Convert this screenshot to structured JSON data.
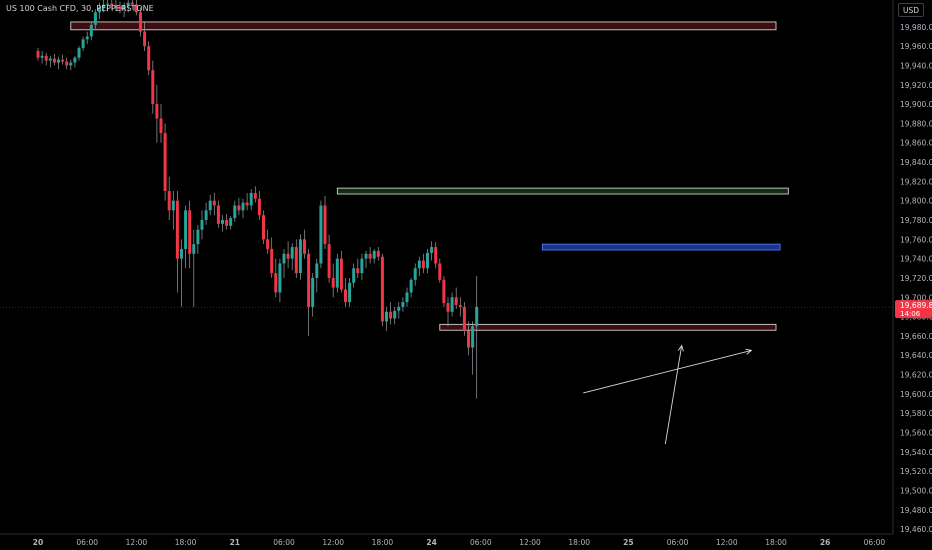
{
  "header": {
    "title": "US 100 Cash CFD, 30, PEPPERSTONE",
    "currency": "USD"
  },
  "price_label": {
    "price": "19,689.8",
    "countdown": "14:06",
    "color": "#f23645"
  },
  "colors": {
    "up": "#26a69a",
    "down": "#f23645",
    "wick": "#9aa0a6",
    "axis_text": "#b2b5be",
    "zone_red": "#f23645",
    "zone_green": "#4caf50",
    "zone_blue": "#2962ff"
  },
  "chart_data": {
    "type": "candlestick",
    "symbol": "US 100 Cash CFD",
    "interval": "30",
    "y_ticks": [
      19460,
      19480,
      19500,
      19520,
      19540,
      19560,
      19580,
      19600,
      19620,
      19640,
      19660,
      19680,
      19700,
      19720,
      19740,
      19760,
      19780,
      19800,
      19820,
      19840,
      19860,
      19880,
      19900,
      19920,
      19940,
      19960,
      19980
    ],
    "y_tick_labels": [
      "19,460.0",
      "19,480.0",
      "19,500.0",
      "19,520.0",
      "19,540.0",
      "19,560.0",
      "19,580.0",
      "19,600.0",
      "19,620.0",
      "19,640.0",
      "19,660.0",
      "19,680.0",
      "19,700.0",
      "19,720.0",
      "19,740.0",
      "19,760.0",
      "19,780.0",
      "19,800.0",
      "19,820.0",
      "19,840.0",
      "19,860.0",
      "19,880.0",
      "19,900.0",
      "19,920.0",
      "19,940.0",
      "19,960.0",
      "19,980.0"
    ],
    "ylim": [
      19450,
      20000
    ],
    "x_ticks": [
      {
        "label": "20",
        "bar": 0
      },
      {
        "label": "06:00",
        "bar": 12
      },
      {
        "label": "12:00",
        "bar": 24
      },
      {
        "label": "18:00",
        "bar": 36
      },
      {
        "label": "21",
        "bar": 48
      },
      {
        "label": "06:00",
        "bar": 60
      },
      {
        "label": "12:00",
        "bar": 72
      },
      {
        "label": "18:00",
        "bar": 84
      },
      {
        "label": "24",
        "bar": 96
      },
      {
        "label": "06:00",
        "bar": 108
      },
      {
        "label": "12:00",
        "bar": 120
      },
      {
        "label": "18:00",
        "bar": 132
      },
      {
        "label": "25",
        "bar": 144
      },
      {
        "label": "06:00",
        "bar": 156
      },
      {
        "label": "12:00",
        "bar": 168
      },
      {
        "label": "18:00",
        "bar": 180
      },
      {
        "label": "26",
        "bar": 192
      },
      {
        "label": "06:00",
        "bar": 204
      }
    ],
    "last_price": 19689.8,
    "candles": [
      [
        19955,
        19958,
        19945,
        19948
      ],
      [
        19948,
        19955,
        19942,
        19950
      ],
      [
        19950,
        19953,
        19940,
        19945
      ],
      [
        19945,
        19950,
        19938,
        19947
      ],
      [
        19947,
        19952,
        19940,
        19943
      ],
      [
        19943,
        19949,
        19936,
        19946
      ],
      [
        19946,
        19951,
        19941,
        19944
      ],
      [
        19944,
        19948,
        19936,
        19940
      ],
      [
        19940,
        19946,
        19935,
        19943
      ],
      [
        19943,
        19950,
        19938,
        19948
      ],
      [
        19948,
        19960,
        19945,
        19958
      ],
      [
        19958,
        19970,
        19955,
        19967
      ],
      [
        19967,
        19975,
        19962,
        19970
      ],
      [
        19970,
        19985,
        19966,
        19982
      ],
      [
        19982,
        19998,
        19978,
        19995
      ],
      [
        19995,
        20005,
        19988,
        20000
      ],
      [
        20000,
        20010,
        19995,
        20003
      ],
      [
        20003,
        20012,
        19996,
        20004
      ],
      [
        20004,
        20010,
        19998,
        20002
      ],
      [
        20002,
        20008,
        19996,
        20001
      ],
      [
        20001,
        20006,
        19994,
        19998
      ],
      [
        19998,
        20005,
        19990,
        20002
      ],
      [
        20002,
        20010,
        19995,
        20005
      ],
      [
        20005,
        20012,
        19998,
        20003
      ],
      [
        20003,
        20008,
        19992,
        19995
      ],
      [
        19995,
        20000,
        19970,
        19975
      ],
      [
        19975,
        19985,
        19955,
        19960
      ],
      [
        19960,
        19965,
        19930,
        19935
      ],
      [
        19935,
        19945,
        19890,
        19900
      ],
      [
        19900,
        19920,
        19860,
        19885
      ],
      [
        19885,
        19900,
        19860,
        19870
      ],
      [
        19870,
        19880,
        19800,
        19810
      ],
      [
        19810,
        19825,
        19780,
        19790
      ],
      [
        19790,
        19810,
        19770,
        19800
      ],
      [
        19800,
        19810,
        19705,
        19740
      ],
      [
        19740,
        19760,
        19690,
        19750
      ],
      [
        19750,
        19795,
        19730,
        19790
      ],
      [
        19790,
        19800,
        19730,
        19745
      ],
      [
        19745,
        19770,
        19690,
        19755
      ],
      [
        19755,
        19775,
        19745,
        19770
      ],
      [
        19770,
        19790,
        19760,
        19780
      ],
      [
        19780,
        19798,
        19775,
        19790
      ],
      [
        19790,
        19806,
        19785,
        19800
      ],
      [
        19800,
        19808,
        19785,
        19795
      ],
      [
        19795,
        19800,
        19772,
        19776
      ],
      [
        19776,
        19785,
        19768,
        19780
      ],
      [
        19780,
        19786,
        19770,
        19774
      ],
      [
        19774,
        19784,
        19770,
        19782
      ],
      [
        19782,
        19800,
        19778,
        19795
      ],
      [
        19795,
        19803,
        19785,
        19790
      ],
      [
        19790,
        19802,
        19782,
        19798
      ],
      [
        19798,
        19808,
        19790,
        19795
      ],
      [
        19795,
        19812,
        19790,
        19808
      ],
      [
        19808,
        19815,
        19798,
        19802
      ],
      [
        19802,
        19810,
        19780,
        19785
      ],
      [
        19785,
        19790,
        19755,
        19760
      ],
      [
        19760,
        19770,
        19745,
        19750
      ],
      [
        19750,
        19762,
        19720,
        19725
      ],
      [
        19725,
        19740,
        19700,
        19705
      ],
      [
        19705,
        19740,
        19695,
        19735
      ],
      [
        19735,
        19750,
        19720,
        19745
      ],
      [
        19745,
        19758,
        19730,
        19740
      ],
      [
        19740,
        19756,
        19728,
        19752
      ],
      [
        19752,
        19760,
        19720,
        19725
      ],
      [
        19725,
        19765,
        19718,
        19760
      ],
      [
        19760,
        19770,
        19740,
        19745
      ],
      [
        19745,
        19750,
        19660,
        19690
      ],
      [
        19690,
        19725,
        19680,
        19720
      ],
      [
        19720,
        19740,
        19705,
        19735
      ],
      [
        19735,
        19800,
        19730,
        19795
      ],
      [
        19795,
        19805,
        19750,
        19755
      ],
      [
        19755,
        19765,
        19715,
        19720
      ],
      [
        19720,
        19735,
        19700,
        19710
      ],
      [
        19710,
        19745,
        19705,
        19740
      ],
      [
        19740,
        19748,
        19705,
        19708
      ],
      [
        19708,
        19720,
        19690,
        19695
      ],
      [
        19695,
        19720,
        19690,
        19715
      ],
      [
        19715,
        19735,
        19710,
        19730
      ],
      [
        19730,
        19740,
        19720,
        19725
      ],
      [
        19725,
        19745,
        19718,
        19740
      ],
      [
        19740,
        19748,
        19730,
        19745
      ],
      [
        19745,
        19752,
        19735,
        19740
      ],
      [
        19740,
        19750,
        19735,
        19748
      ],
      [
        19748,
        19752,
        19738,
        19742
      ],
      [
        19742,
        19745,
        19670,
        19675
      ],
      [
        19675,
        19690,
        19665,
        19685
      ],
      [
        19685,
        19695,
        19672,
        19678
      ],
      [
        19678,
        19690,
        19672,
        19686
      ],
      [
        19686,
        19695,
        19678,
        19690
      ],
      [
        19690,
        19700,
        19685,
        19695
      ],
      [
        19695,
        19710,
        19690,
        19705
      ],
      [
        19705,
        19720,
        19700,
        19718
      ],
      [
        19718,
        19735,
        19712,
        19730
      ],
      [
        19730,
        19742,
        19722,
        19738
      ],
      [
        19738,
        19745,
        19725,
        19730
      ],
      [
        19730,
        19750,
        19725,
        19746
      ],
      [
        19746,
        19758,
        19738,
        19752
      ],
      [
        19752,
        19757,
        19730,
        19735
      ],
      [
        19735,
        19740,
        19715,
        19718
      ],
      [
        19718,
        19722,
        19690,
        19694
      ],
      [
        19694,
        19700,
        19670,
        19685
      ],
      [
        19685,
        19705,
        19680,
        19700
      ],
      [
        19700,
        19710,
        19688,
        19692
      ],
      [
        19692,
        19700,
        19680,
        19690
      ],
      [
        19690,
        19695,
        19660,
        19665
      ],
      [
        19665,
        19675,
        19640,
        19648
      ],
      [
        19648,
        19675,
        19620,
        19670
      ],
      [
        19670,
        19722,
        19595,
        19690
      ]
    ],
    "zones": [
      {
        "color": "red",
        "from_bar": 8,
        "to_bar": 180,
        "top": 19985,
        "bottom": 19980
      },
      {
        "color": "green",
        "from_bar": 73,
        "to_bar": 183,
        "top": 19813,
        "bottom": 19810
      },
      {
        "color": "blue",
        "from_bar": 123,
        "to_bar": 181,
        "top": 19755,
        "bottom": 19752
      },
      {
        "color": "red",
        "from_bar": 98,
        "to_bar": 180,
        "top": 19672,
        "bottom": 19669
      }
    ],
    "arrows": [
      {
        "x1_bar": 133,
        "y1": 19601,
        "x2_bar": 174,
        "y2": 19645
      },
      {
        "x1_bar": 153,
        "y1": 19548,
        "x2_bar": 157,
        "y2": 19650
      }
    ],
    "grid": false,
    "legend": "none"
  }
}
